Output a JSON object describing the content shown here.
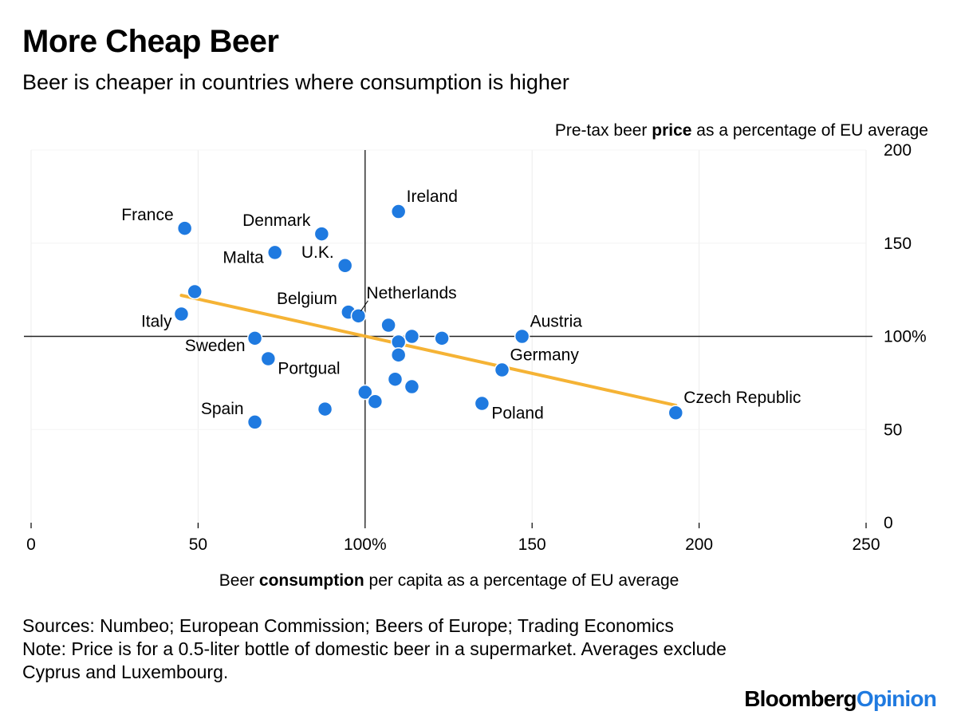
{
  "header": {
    "title": "More Cheap Beer",
    "subtitle": "Beer is cheaper in countries where consumption is higher"
  },
  "chart_data": {
    "type": "scatter",
    "xlim": [
      0,
      250
    ],
    "ylim": [
      0,
      200
    ],
    "x_ticks": [
      {
        "value": 0,
        "label": "0"
      },
      {
        "value": 50,
        "label": "50"
      },
      {
        "value": 100,
        "label": "100%"
      },
      {
        "value": 150,
        "label": "150"
      },
      {
        "value": 200,
        "label": "200"
      },
      {
        "value": 250,
        "label": "250"
      }
    ],
    "y_ticks": [
      {
        "value": 0,
        "label": "0"
      },
      {
        "value": 50,
        "label": "50"
      },
      {
        "value": 100,
        "label": "100%"
      },
      {
        "value": 150,
        "label": "150"
      },
      {
        "value": 200,
        "label": "200"
      }
    ],
    "ylabel_pre": "Pre-tax beer ",
    "ylabel_bold": "price",
    "ylabel_post": " as a percentage of EU average",
    "xlabel_pre": "Beer ",
    "xlabel_bold": "consumption",
    "xlabel_post": " per capita as a percentage of EU average",
    "reference_lines": {
      "x": 100,
      "y": 100
    },
    "trend_line": {
      "x": [
        45,
        193
      ],
      "y": [
        122,
        63
      ],
      "color": "#f5b335"
    },
    "point_color": "#1f7ae0",
    "points": [
      {
        "x": 46,
        "y": 158,
        "label": "France",
        "pos": "upper-left"
      },
      {
        "x": 110,
        "y": 167,
        "label": "Ireland",
        "pos": "upper-right"
      },
      {
        "x": 87,
        "y": 155,
        "label": "Denmark",
        "pos": "upper-left"
      },
      {
        "x": 73,
        "y": 145,
        "label": "Malta",
        "pos": "left"
      },
      {
        "x": 94,
        "y": 138,
        "label": "U.K.",
        "pos": "upper-left"
      },
      {
        "x": 49,
        "y": 124,
        "label": "",
        "pos": "none"
      },
      {
        "x": 45,
        "y": 112,
        "label": "Italy",
        "pos": "lower-left"
      },
      {
        "x": 95,
        "y": 113,
        "label": "Belgium",
        "pos": "upper-left"
      },
      {
        "x": 98,
        "y": 111,
        "label": "Netherlands",
        "pos": "leader"
      },
      {
        "x": 107,
        "y": 106,
        "label": "",
        "pos": "none"
      },
      {
        "x": 147,
        "y": 100,
        "label": "Austria",
        "pos": "upper-right"
      },
      {
        "x": 114,
        "y": 100,
        "label": "",
        "pos": "none"
      },
      {
        "x": 123,
        "y": 99,
        "label": "",
        "pos": "none"
      },
      {
        "x": 110,
        "y": 97,
        "label": "",
        "pos": "none"
      },
      {
        "x": 67,
        "y": 99,
        "label": "Sweden",
        "pos": "lower-left"
      },
      {
        "x": 110,
        "y": 90,
        "label": "",
        "pos": "none"
      },
      {
        "x": 71,
        "y": 88,
        "label": "Portgual",
        "pos": "lower-right"
      },
      {
        "x": 141,
        "y": 82,
        "label": "Germany",
        "pos": "upper-right"
      },
      {
        "x": 109,
        "y": 77,
        "label": "",
        "pos": "none"
      },
      {
        "x": 114,
        "y": 73,
        "label": "",
        "pos": "none"
      },
      {
        "x": 100,
        "y": 70,
        "label": "",
        "pos": "none"
      },
      {
        "x": 103,
        "y": 65,
        "label": "",
        "pos": "none"
      },
      {
        "x": 135,
        "y": 64,
        "label": "Poland",
        "pos": "lower-right"
      },
      {
        "x": 88,
        "y": 61,
        "label": "",
        "pos": "none"
      },
      {
        "x": 193,
        "y": 59,
        "label": "Czech Republic",
        "pos": "upper-right"
      },
      {
        "x": 67,
        "y": 54,
        "label": "Spain",
        "pos": "upper-left"
      }
    ]
  },
  "footer": {
    "sources": "Sources: Numbeo; European Commission; Beers of Europe; Trading Economics",
    "note": "Note: Price is for a 0.5-liter bottle of domestic beer in a supermarket. Averages exclude Cyprus and Luxembourg.",
    "brand_primary": "Bloomberg",
    "brand_secondary": "Opinion"
  }
}
